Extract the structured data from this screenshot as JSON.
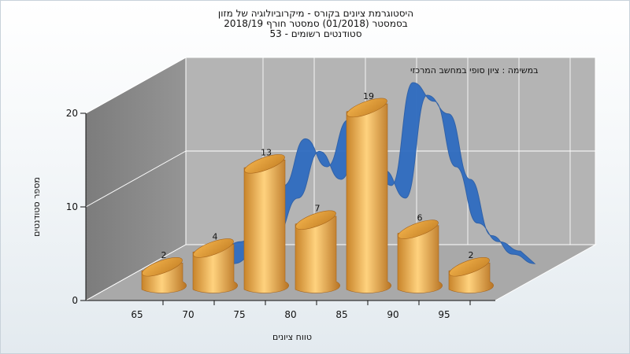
{
  "title_lines": [
    "היסטוגרמת ציונים בקורס - מיקרוביולוגיה של מזון",
    "בסמסטר  (01/2018)  סמסטר חורף  2018/19",
    "סטודנטים רשומים - 53"
  ],
  "chart_data": {
    "type": "bar",
    "subtitle": "במשימה : ציון סופי במחשב המרכזי",
    "xlabel": "טווח ציונים",
    "ylabel": "מספר סטודנטים",
    "categories": [
      "65",
      "70",
      "75",
      "80",
      "85",
      "90",
      "95"
    ],
    "values": [
      2,
      4,
      13,
      7,
      19,
      6,
      2
    ],
    "curve": [
      1,
      2,
      3,
      5,
      9,
      14,
      11,
      16,
      12,
      9,
      20,
      18,
      11,
      5,
      3,
      2
    ],
    "ylim": [
      0,
      20
    ],
    "yticks": [
      0,
      10,
      20
    ],
    "grid": true,
    "bar_shape": "cylinder",
    "bar_color": "#e3a23c",
    "curve_color": "#2f6cc0",
    "wall_color": "#8c8c8c",
    "back_wall_color": "#b4b4b4",
    "floor_color": "#a9a9a9"
  }
}
